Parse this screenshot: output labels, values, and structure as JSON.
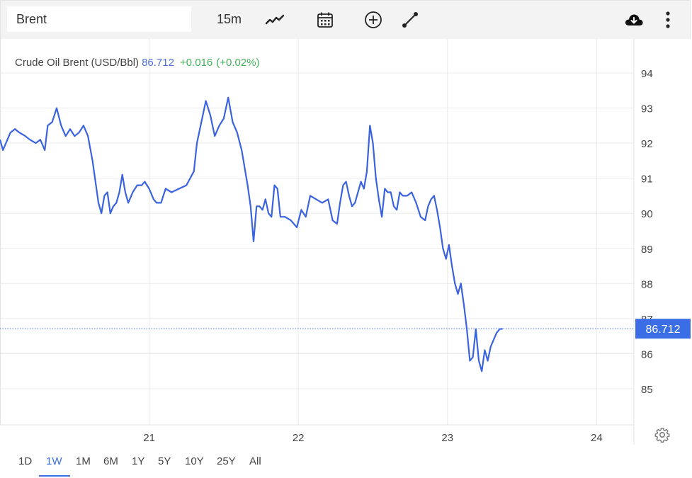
{
  "toolbar": {
    "search_value": "Brent",
    "interval_label": "15m",
    "icons": [
      "line-chart-icon",
      "calendar-icon",
      "add-indicator-icon",
      "drawing-tool-icon",
      "download-cloud-icon",
      "more-vertical-icon"
    ]
  },
  "legend": {
    "name": "Crude Oil Brent (USD/Bbl)",
    "value": "86.712",
    "change": "+0.016",
    "change_pct": "(+0.02%)"
  },
  "price_label": "86.712",
  "ranges": {
    "items": [
      "1D",
      "1W",
      "1M",
      "6M",
      "1Y",
      "5Y",
      "10Y",
      "25Y",
      "All"
    ],
    "active": "1W"
  },
  "colors": {
    "line": "#3b63e0",
    "price_tag": "#3b6ee6",
    "up": "#43b35a",
    "grid": "#ebebeb"
  },
  "chart_data": {
    "type": "line",
    "title": "",
    "xlabel": "",
    "ylabel": "",
    "x_ticks": [
      {
        "label": "21",
        "x": 21
      },
      {
        "label": "22",
        "x": 22
      },
      {
        "label": "23",
        "x": 23
      },
      {
        "label": "24",
        "x": 24
      }
    ],
    "xlim": [
      20.0,
      24.25
    ],
    "ylim": [
      84.0,
      95.0
    ],
    "y_ticks": [
      85,
      86,
      87,
      88,
      89,
      90,
      91,
      92,
      93,
      94
    ],
    "grid": true,
    "last_value": 86.712,
    "series": [
      {
        "values": [
          [
            20.0,
            92.1
          ],
          [
            20.02,
            91.8
          ],
          [
            20.04,
            92.0
          ],
          [
            20.07,
            92.3
          ],
          [
            20.1,
            92.4
          ],
          [
            20.13,
            92.3
          ],
          [
            20.17,
            92.2
          ],
          [
            20.2,
            92.1
          ],
          [
            20.24,
            92.0
          ],
          [
            20.27,
            92.1
          ],
          [
            20.3,
            91.8
          ],
          [
            20.32,
            92.5
          ],
          [
            20.35,
            92.6
          ],
          [
            20.38,
            93.0
          ],
          [
            20.41,
            92.5
          ],
          [
            20.44,
            92.2
          ],
          [
            20.47,
            92.4
          ],
          [
            20.5,
            92.2
          ],
          [
            20.53,
            92.3
          ],
          [
            20.56,
            92.5
          ],
          [
            20.59,
            92.2
          ],
          [
            20.62,
            91.5
          ],
          [
            20.64,
            90.9
          ],
          [
            20.66,
            90.3
          ],
          [
            20.68,
            90.0
          ],
          [
            20.7,
            90.5
          ],
          [
            20.72,
            90.6
          ],
          [
            20.74,
            90.0
          ],
          [
            20.76,
            90.2
          ],
          [
            20.78,
            90.3
          ],
          [
            20.8,
            90.6
          ],
          [
            20.82,
            91.1
          ],
          [
            20.84,
            90.6
          ],
          [
            20.86,
            90.3
          ],
          [
            20.89,
            90.6
          ],
          [
            20.92,
            90.8
          ],
          [
            20.95,
            90.8
          ],
          [
            20.97,
            90.9
          ],
          [
            21.0,
            90.7
          ],
          [
            21.03,
            90.4
          ],
          [
            21.05,
            90.3
          ],
          [
            21.08,
            90.3
          ],
          [
            21.11,
            90.7
          ],
          [
            21.15,
            90.6
          ],
          [
            21.2,
            90.7
          ],
          [
            21.25,
            90.8
          ],
          [
            21.3,
            91.2
          ],
          [
            21.32,
            92.0
          ],
          [
            21.35,
            92.6
          ],
          [
            21.38,
            93.2
          ],
          [
            21.41,
            92.8
          ],
          [
            21.44,
            92.2
          ],
          [
            21.47,
            92.5
          ],
          [
            21.5,
            92.7
          ],
          [
            21.53,
            93.3
          ],
          [
            21.56,
            92.6
          ],
          [
            21.59,
            92.3
          ],
          [
            21.62,
            91.8
          ],
          [
            21.64,
            91.3
          ],
          [
            21.66,
            90.8
          ],
          [
            21.68,
            90.2
          ],
          [
            21.7,
            89.2
          ],
          [
            21.72,
            90.2
          ],
          [
            21.74,
            90.2
          ],
          [
            21.76,
            90.1
          ],
          [
            21.78,
            90.4
          ],
          [
            21.8,
            90.0
          ],
          [
            21.82,
            89.9
          ],
          [
            21.84,
            90.8
          ],
          [
            21.86,
            90.7
          ],
          [
            21.88,
            89.9
          ],
          [
            21.91,
            89.9
          ],
          [
            21.95,
            89.8
          ],
          [
            21.99,
            89.6
          ],
          [
            22.02,
            90.1
          ],
          [
            22.05,
            89.9
          ],
          [
            22.08,
            90.5
          ],
          [
            22.12,
            90.4
          ],
          [
            22.16,
            90.3
          ],
          [
            22.2,
            90.4
          ],
          [
            22.23,
            89.8
          ],
          [
            22.26,
            89.7
          ],
          [
            22.28,
            90.3
          ],
          [
            22.3,
            90.8
          ],
          [
            22.32,
            90.9
          ],
          [
            22.34,
            90.5
          ],
          [
            22.36,
            90.2
          ],
          [
            22.38,
            90.3
          ],
          [
            22.4,
            90.6
          ],
          [
            22.42,
            90.9
          ],
          [
            22.44,
            90.7
          ],
          [
            22.46,
            91.2
          ],
          [
            22.48,
            92.5
          ],
          [
            22.5,
            92.0
          ],
          [
            22.52,
            91.0
          ],
          [
            22.54,
            90.4
          ],
          [
            22.56,
            89.9
          ],
          [
            22.58,
            90.7
          ],
          [
            22.6,
            90.6
          ],
          [
            22.62,
            90.6
          ],
          [
            22.64,
            90.2
          ],
          [
            22.66,
            90.1
          ],
          [
            22.68,
            90.6
          ],
          [
            22.7,
            90.5
          ],
          [
            22.73,
            90.5
          ],
          [
            22.76,
            90.6
          ],
          [
            22.79,
            90.3
          ],
          [
            22.82,
            89.9
          ],
          [
            22.85,
            89.8
          ],
          [
            22.87,
            90.2
          ],
          [
            22.89,
            90.4
          ],
          [
            22.91,
            90.5
          ],
          [
            22.93,
            90.1
          ],
          [
            22.95,
            89.6
          ],
          [
            22.97,
            89.0
          ],
          [
            22.99,
            88.7
          ],
          [
            23.01,
            89.1
          ],
          [
            23.03,
            88.5
          ],
          [
            23.05,
            88.0
          ],
          [
            23.07,
            87.7
          ],
          [
            23.09,
            88.0
          ],
          [
            23.11,
            87.4
          ],
          [
            23.13,
            86.7
          ],
          [
            23.15,
            85.8
          ],
          [
            23.17,
            85.9
          ],
          [
            23.19,
            86.7
          ],
          [
            23.21,
            85.8
          ],
          [
            23.23,
            85.5
          ],
          [
            23.25,
            86.1
          ],
          [
            23.27,
            85.8
          ],
          [
            23.29,
            86.2
          ],
          [
            23.31,
            86.4
          ],
          [
            23.33,
            86.6
          ],
          [
            23.35,
            86.7
          ],
          [
            23.37,
            86.712
          ]
        ]
      }
    ]
  }
}
